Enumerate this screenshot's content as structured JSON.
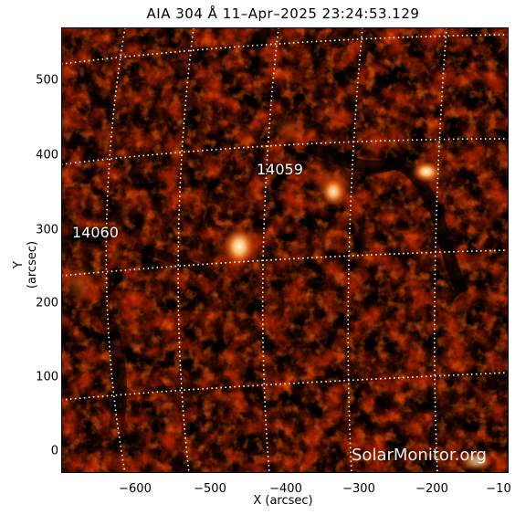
{
  "title": "AIA 304 Å 11–Apr–2025 23:24:53.129",
  "xlabel": "X (arcsec)",
  "ylabel": "Y (arcsec)",
  "x_ticks": [
    "−600",
    "−500",
    "−400",
    "−300",
    "−200",
    "−10"
  ],
  "y_ticks": [
    "500",
    "400",
    "300",
    "200",
    "100",
    "0"
  ],
  "regions": [
    "14059",
    "14060"
  ],
  "watermark": "SolarMonitor.org",
  "colors": {
    "background": "#000000",
    "dark_red": "#5a0a00",
    "red": "#a82000",
    "orange": "#e85a10",
    "bright": "#fff2c8",
    "grid": "#ffffff"
  }
}
